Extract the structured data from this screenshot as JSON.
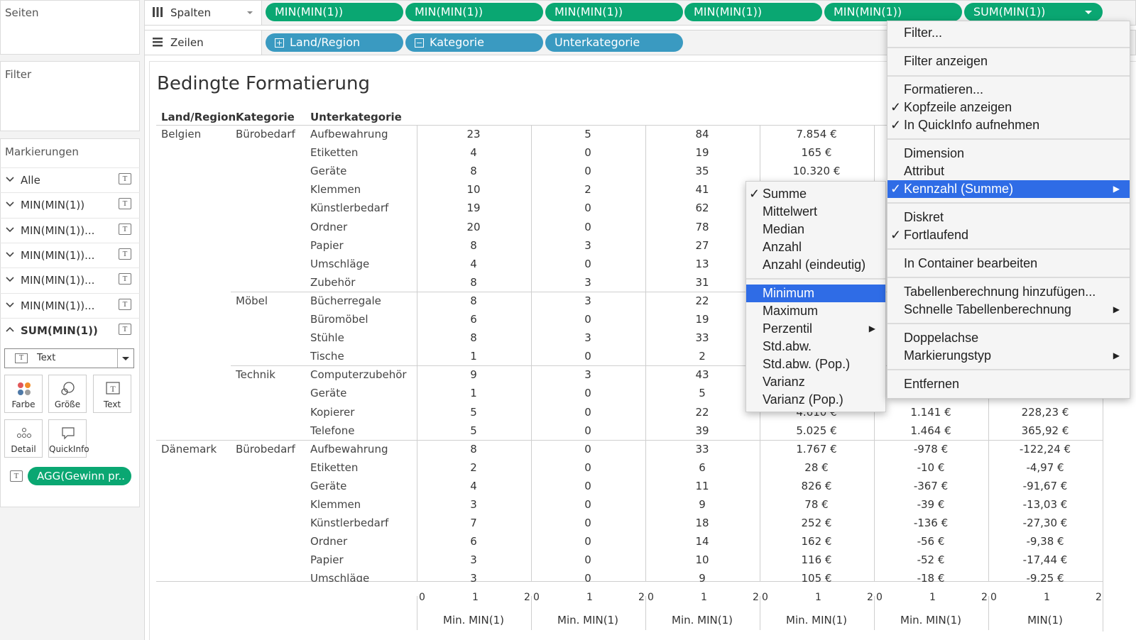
{
  "sidebar": {
    "pages_title": "Seiten",
    "filter_title": "Filter",
    "marks_title": "Markierungen",
    "marks_rows": [
      {
        "label": "Alle",
        "expanded": false
      },
      {
        "label": "MIN(MIN(1))",
        "expanded": false
      },
      {
        "label": "MIN(MIN(1))...",
        "expanded": false
      },
      {
        "label": "MIN(MIN(1))...",
        "expanded": false
      },
      {
        "label": "MIN(MIN(1))...",
        "expanded": false
      },
      {
        "label": "MIN(MIN(1))...",
        "expanded": false
      },
      {
        "label": "SUM(MIN(1))",
        "expanded": true
      }
    ],
    "mark_type": "Text",
    "mark_buttons": [
      "Farbe",
      "Größe",
      "Text",
      "Detail",
      "QuickInfo"
    ],
    "text_pill": "AGG(Gewinn pr.."
  },
  "shelves": {
    "columns_label": "Spalten",
    "rows_label": "Zeilen",
    "column_pills": [
      "MIN(MIN(1))",
      "MIN(MIN(1))",
      "MIN(MIN(1))",
      "MIN(MIN(1))",
      "MIN(MIN(1))",
      "SUM(MIN(1))"
    ],
    "row_pills": [
      "Land/Region",
      "Kategorie",
      "Unterkategorie"
    ]
  },
  "view": {
    "title": "Bedingte Formatierung",
    "headers": [
      "Land/Region",
      "Kategorie",
      "Unterkategorie"
    ],
    "rows": [
      {
        "country": "Belgien",
        "category": "Bürobedarf",
        "sub": "Aufbewahrung",
        "v": [
          "23",
          "5",
          "84",
          "7.854 €",
          "",
          ""
        ]
      },
      {
        "country": "",
        "category": "",
        "sub": "Etiketten",
        "v": [
          "4",
          "0",
          "19",
          "165 €",
          "",
          ""
        ]
      },
      {
        "country": "",
        "category": "",
        "sub": "Geräte",
        "v": [
          "8",
          "0",
          "35",
          "10.320 €",
          "",
          ""
        ]
      },
      {
        "country": "",
        "category": "",
        "sub": "Klemmen",
        "v": [
          "10",
          "2",
          "41",
          "",
          "",
          ""
        ]
      },
      {
        "country": "",
        "category": "",
        "sub": "Künstlerbedarf",
        "v": [
          "19",
          "0",
          "62",
          "",
          "",
          ""
        ]
      },
      {
        "country": "",
        "category": "",
        "sub": "Ordner",
        "v": [
          "20",
          "0",
          "78",
          "",
          "",
          ""
        ]
      },
      {
        "country": "",
        "category": "",
        "sub": "Papier",
        "v": [
          "8",
          "3",
          "27",
          "",
          "",
          ""
        ]
      },
      {
        "country": "",
        "category": "",
        "sub": "Umschläge",
        "v": [
          "4",
          "0",
          "13",
          "",
          "",
          ""
        ]
      },
      {
        "country": "",
        "category": "",
        "sub": "Zubehör",
        "v": [
          "8",
          "3",
          "31",
          "",
          "",
          ""
        ]
      },
      {
        "country": "",
        "category": "Möbel",
        "sub": "Bücherregale",
        "v": [
          "8",
          "3",
          "22",
          "",
          "",
          ""
        ]
      },
      {
        "country": "",
        "category": "",
        "sub": "Büromöbel",
        "v": [
          "6",
          "0",
          "19",
          "",
          "",
          ""
        ]
      },
      {
        "country": "",
        "category": "",
        "sub": "Stühle",
        "v": [
          "8",
          "3",
          "33",
          "",
          "",
          ""
        ]
      },
      {
        "country": "",
        "category": "",
        "sub": "Tische",
        "v": [
          "1",
          "0",
          "2",
          "",
          "",
          ""
        ]
      },
      {
        "country": "",
        "category": "Technik",
        "sub": "Computerzubehör",
        "v": [
          "9",
          "3",
          "43",
          "",
          "",
          ""
        ]
      },
      {
        "country": "",
        "category": "",
        "sub": "Geräte",
        "v": [
          "1",
          "0",
          "5",
          "",
          "",
          ""
        ]
      },
      {
        "country": "",
        "category": "",
        "sub": "Kopierer",
        "v": [
          "5",
          "0",
          "22",
          "4.610 €",
          "1.141 €",
          "228,23 €"
        ]
      },
      {
        "country": "",
        "category": "",
        "sub": "Telefone",
        "v": [
          "5",
          "0",
          "39",
          "5.025 €",
          "1.464 €",
          "365,92 €"
        ]
      },
      {
        "country": "Dänemark",
        "category": "Bürobedarf",
        "sub": "Aufbewahrung",
        "v": [
          "8",
          "0",
          "33",
          "1.767 €",
          "-978 €",
          "-122,24 €"
        ]
      },
      {
        "country": "",
        "category": "",
        "sub": "Etiketten",
        "v": [
          "2",
          "0",
          "6",
          "28 €",
          "-10 €",
          "-4,97 €"
        ]
      },
      {
        "country": "",
        "category": "",
        "sub": "Geräte",
        "v": [
          "4",
          "0",
          "11",
          "826 €",
          "-367 €",
          "-91,67 €"
        ]
      },
      {
        "country": "",
        "category": "",
        "sub": "Klemmen",
        "v": [
          "3",
          "0",
          "9",
          "78 €",
          "-39 €",
          "-13,03 €"
        ]
      },
      {
        "country": "",
        "category": "",
        "sub": "Künstlerbedarf",
        "v": [
          "7",
          "0",
          "18",
          "252 €",
          "-136 €",
          "-27,30 €"
        ]
      },
      {
        "country": "",
        "category": "",
        "sub": "Ordner",
        "v": [
          "6",
          "0",
          "14",
          "162 €",
          "-56 €",
          "-9,38 €"
        ]
      },
      {
        "country": "",
        "category": "",
        "sub": "Papier",
        "v": [
          "3",
          "0",
          "10",
          "116 €",
          "-52 €",
          "-17,44 €"
        ]
      },
      {
        "country": "",
        "category": "",
        "sub": "Umschläge",
        "v": [
          "3",
          "0",
          "9",
          "105 €",
          "-18 €",
          "-9,25 €"
        ]
      }
    ],
    "axis_ticks": [
      "0",
      "1",
      "2"
    ],
    "axis_titles": [
      "Min. MIN(1)",
      "Min. MIN(1)",
      "Min. MIN(1)",
      "Min. MIN(1)",
      "Min. MIN(1)",
      "MIN(1)"
    ]
  },
  "context_menu": {
    "items": [
      {
        "label": "Filter...",
        "checked": false,
        "submenu": false,
        "highlight": false
      },
      {
        "label": "Filter anzeigen",
        "checked": false,
        "submenu": false,
        "highlight": false
      },
      {
        "label": "Formatieren...",
        "checked": false,
        "submenu": false,
        "highlight": false
      },
      {
        "label": "Kopfzeile anzeigen",
        "checked": true,
        "submenu": false,
        "highlight": false
      },
      {
        "label": "In QuickInfo aufnehmen",
        "checked": true,
        "submenu": false,
        "highlight": false
      },
      {
        "label": "Dimension",
        "checked": false,
        "submenu": false,
        "highlight": false
      },
      {
        "label": "Attribut",
        "checked": false,
        "submenu": false,
        "highlight": false
      },
      {
        "label": "Kennzahl (Summe)",
        "checked": true,
        "submenu": true,
        "highlight": true
      },
      {
        "label": "Diskret",
        "checked": false,
        "submenu": false,
        "highlight": false
      },
      {
        "label": "Fortlaufend",
        "checked": true,
        "submenu": false,
        "highlight": false
      },
      {
        "label": "In Container bearbeiten",
        "checked": false,
        "submenu": false,
        "highlight": false
      },
      {
        "label": "Tabellenberechnung hinzufügen...",
        "checked": false,
        "submenu": false,
        "highlight": false
      },
      {
        "label": "Schnelle Tabellenberechnung",
        "checked": false,
        "submenu": true,
        "highlight": false
      },
      {
        "label": "Doppelachse",
        "checked": false,
        "submenu": false,
        "highlight": false
      },
      {
        "label": "Markierungstyp",
        "checked": false,
        "submenu": true,
        "highlight": false
      },
      {
        "label": "Entfernen",
        "checked": false,
        "submenu": false,
        "highlight": false
      }
    ]
  },
  "aggregation_menu": {
    "items": [
      {
        "label": "Summe",
        "checked": true,
        "submenu": false,
        "highlight": false
      },
      {
        "label": "Mittelwert",
        "checked": false,
        "submenu": false,
        "highlight": false
      },
      {
        "label": "Median",
        "checked": false,
        "submenu": false,
        "highlight": false
      },
      {
        "label": "Anzahl",
        "checked": false,
        "submenu": false,
        "highlight": false
      },
      {
        "label": "Anzahl (eindeutig)",
        "checked": false,
        "submenu": false,
        "highlight": false
      },
      {
        "label": "Minimum",
        "checked": false,
        "submenu": false,
        "highlight": true
      },
      {
        "label": "Maximum",
        "checked": false,
        "submenu": false,
        "highlight": false
      },
      {
        "label": "Perzentil",
        "checked": false,
        "submenu": true,
        "highlight": false
      },
      {
        "label": "Std.abw.",
        "checked": false,
        "submenu": false,
        "highlight": false
      },
      {
        "label": "Std.abw. (Pop.)",
        "checked": false,
        "submenu": false,
        "highlight": false
      },
      {
        "label": "Varianz",
        "checked": false,
        "submenu": false,
        "highlight": false
      },
      {
        "label": "Varianz (Pop.)",
        "checked": false,
        "submenu": false,
        "highlight": false
      }
    ]
  },
  "colors": {
    "pill_green": "#0aa772",
    "pill_blue": "#3a9ac1",
    "menu_highlight": "#2f6ce6"
  }
}
